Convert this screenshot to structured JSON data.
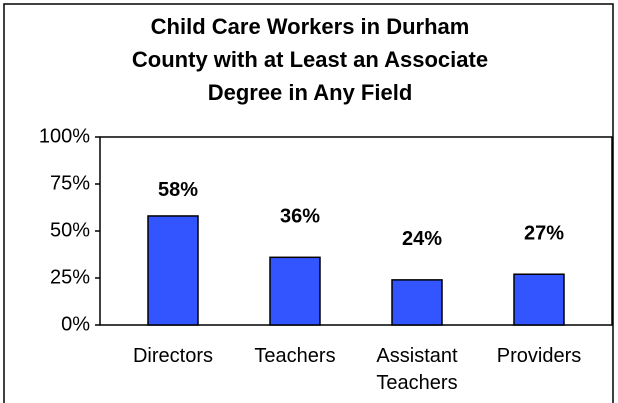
{
  "chart_data": {
    "type": "bar",
    "title": "Child Care Workers in Durham County with at Least an Associate Degree in Any Field",
    "categories": [
      "Directors",
      "Teachers",
      "Assistant Teachers",
      "Providers"
    ],
    "values": [
      58,
      36,
      24,
      27
    ],
    "value_labels": [
      "58%",
      "36%",
      "24%",
      "27%"
    ],
    "color": "#3355ff",
    "ylim": [
      0,
      100
    ],
    "yticks": [
      {
        "value": 0,
        "label": "0%"
      },
      {
        "value": 25,
        "label": "25%"
      },
      {
        "value": 50,
        "label": "50%"
      },
      {
        "value": 75,
        "label": "75%"
      },
      {
        "value": 100,
        "label": "100%"
      }
    ],
    "grid": false
  }
}
